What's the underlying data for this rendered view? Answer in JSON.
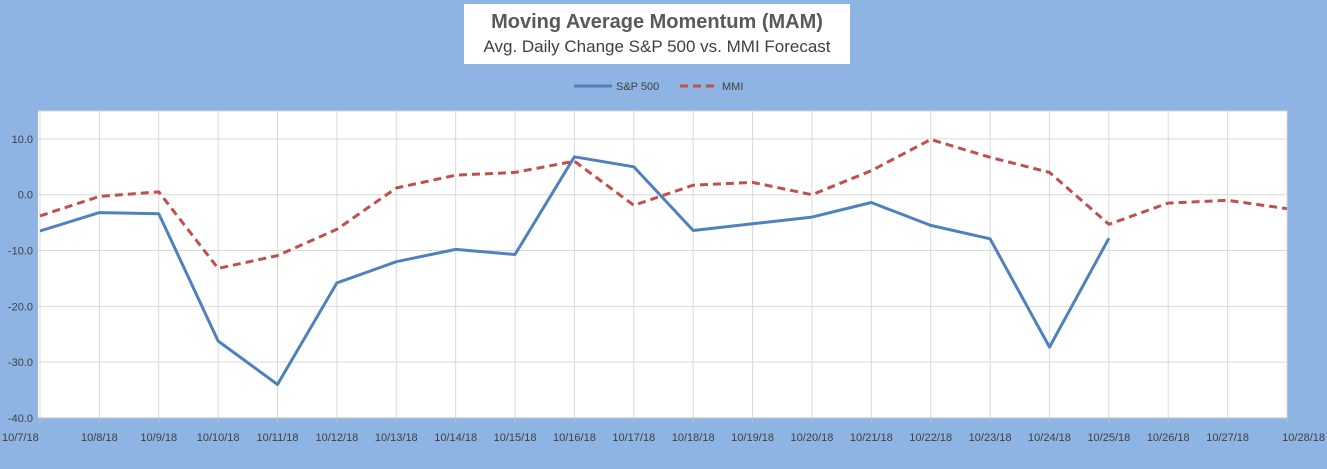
{
  "chart_data": {
    "type": "line",
    "title": "Moving Average Momentum (MAM)",
    "subtitle": "Avg. Daily Change S&P 500 vs. MMI Forecast",
    "x": [
      "10/7/18",
      "10/8/18",
      "10/9/18",
      "10/10/18",
      "10/11/18",
      "10/12/18",
      "10/13/18",
      "10/14/18",
      "10/15/18",
      "10/16/18",
      "10/17/18",
      "10/18/18",
      "10/19/18",
      "10/20/18",
      "10/21/18",
      "10/22/18",
      "10/23/18",
      "10/24/18",
      "10/25/18",
      "10/26/18",
      "10/27/18",
      "10/28/18"
    ],
    "series": [
      {
        "name": "S&P 500",
        "color": "#4f81bd",
        "style": "solid",
        "values": [
          -6.5,
          -3.2,
          -3.4,
          -26.2,
          -34.0,
          -15.8,
          -12.0,
          -9.8,
          -10.7,
          6.8,
          5.0,
          -6.4,
          -5.2,
          -4.0,
          -1.4,
          -5.5,
          -7.9,
          -27.3,
          -7.8,
          null,
          null,
          null
        ]
      },
      {
        "name": "MMI",
        "color": "#c0504d",
        "style": "dashed",
        "values": [
          -3.8,
          -0.3,
          0.5,
          -13.2,
          -10.9,
          -6.2,
          1.2,
          3.5,
          4.0,
          6.0,
          -1.9,
          1.7,
          2.2,
          0.0,
          4.3,
          9.9,
          6.7,
          4.0,
          -5.3,
          -1.5,
          -1.0,
          -2.5
        ]
      }
    ],
    "ylim": [
      -40,
      15
    ],
    "yticks": [
      -40,
      -30,
      -20,
      -10,
      0,
      10
    ],
    "ytick_labels": [
      "-40.0",
      "-30.0",
      "-20.0",
      "-10.0",
      "0.0",
      "10.0"
    ],
    "grid": true,
    "legend_position": "top-center"
  }
}
